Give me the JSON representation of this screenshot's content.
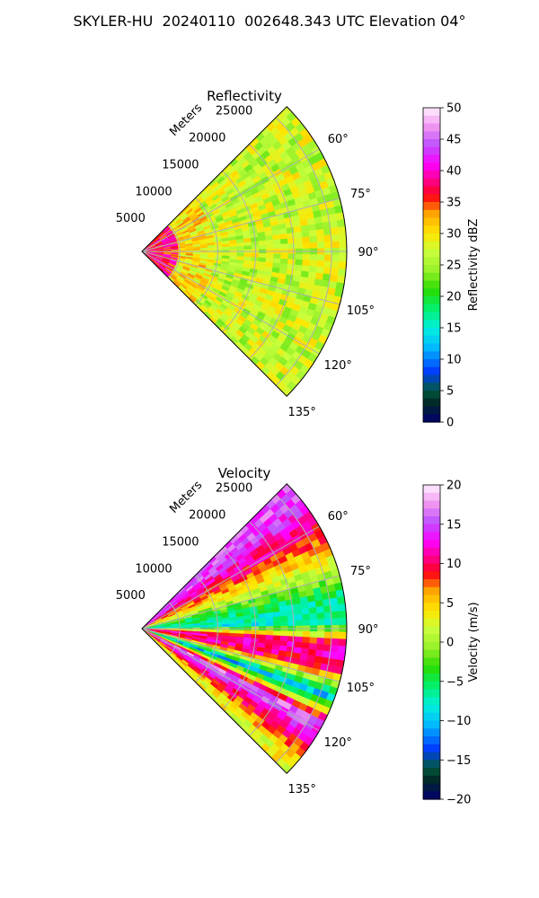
{
  "figure": {
    "title": "SKYLER-HU  20240110  002648.343 UTC Elevation 04°"
  },
  "chart_data": [
    {
      "type": "heatmap",
      "subtype": "polar-sector-ppi",
      "title": "Reflectivity",
      "radial_axis_label": "Meters",
      "radial_ticks": [
        5000,
        10000,
        15000,
        20000,
        25000
      ],
      "radial_tick_labels": [
        "5000",
        "10000",
        "15000",
        "20000",
        "25000"
      ],
      "radial_range": [
        0,
        27000
      ],
      "azimuth_ticks": [
        60,
        75,
        90,
        105,
        120,
        135
      ],
      "azimuth_tick_labels": [
        "60°",
        "75°",
        "90°",
        "105°",
        "120°",
        "135°"
      ],
      "azimuth_range": [
        45,
        135
      ],
      "grid": true,
      "colorbar": {
        "label": "Reflectivity dBZ",
        "range": [
          0,
          50
        ],
        "ticks": [
          0,
          5,
          10,
          15,
          20,
          25,
          30,
          35,
          40,
          45,
          50
        ],
        "tick_labels": [
          "0",
          "5",
          "10",
          "15",
          "20",
          "25",
          "30",
          "35",
          "40",
          "45",
          "50"
        ]
      },
      "field_summary": [
        {
          "range_from": 0,
          "range_to": 5000,
          "value": 37
        },
        {
          "range_from": 5000,
          "range_to": 10000,
          "value": 30
        },
        {
          "range_from": 10000,
          "range_to": 25000,
          "value": 27
        }
      ]
    },
    {
      "type": "heatmap",
      "subtype": "polar-sector-ppi",
      "title": "Velocity",
      "radial_axis_label": "Meters",
      "radial_ticks": [
        5000,
        10000,
        15000,
        20000,
        25000
      ],
      "radial_tick_labels": [
        "5000",
        "10000",
        "15000",
        "20000",
        "25000"
      ],
      "radial_range": [
        0,
        27000
      ],
      "azimuth_ticks": [
        60,
        75,
        90,
        105,
        120,
        135
      ],
      "azimuth_tick_labels": [
        "60°",
        "75°",
        "90°",
        "105°",
        "120°",
        "135°"
      ],
      "azimuth_range": [
        45,
        135
      ],
      "grid": true,
      "colorbar": {
        "label": "Velocity (m/s)",
        "range": [
          -20,
          20
        ],
        "ticks": [
          -20,
          -15,
          -10,
          -5,
          0,
          5,
          10,
          15,
          20
        ],
        "tick_labels": [
          "−20",
          "−15",
          "−10",
          "−5",
          "0",
          "5",
          "10",
          "15",
          "20"
        ]
      },
      "field_summary": [
        {
          "azimuth": 50,
          "value": 15
        },
        {
          "azimuth": 60,
          "value": 10
        },
        {
          "azimuth": 70,
          "value": 3
        },
        {
          "azimuth": 80,
          "value": -5
        },
        {
          "azimuth": 88,
          "value": -8
        },
        {
          "azimuth": 95,
          "value": 12
        },
        {
          "azimuth": 102,
          "value": 10
        },
        {
          "azimuth": 110,
          "value": -10
        },
        {
          "azimuth": 118,
          "value": 16
        },
        {
          "azimuth": 125,
          "value": 10
        },
        {
          "azimuth": 132,
          "value": 3
        }
      ]
    }
  ]
}
